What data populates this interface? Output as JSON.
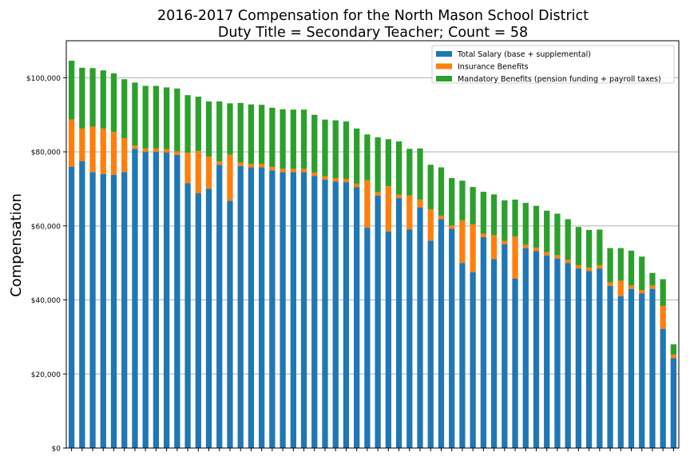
{
  "chart_data": {
    "type": "bar",
    "stacked": true,
    "title": "2016-2017 Compensation for the North Mason School District",
    "subtitle": "Duty Title = Secondary Teacher; Count = 58",
    "xlabel": "",
    "ylabel": "Compensation",
    "ylim": [
      0,
      110000
    ],
    "yticks": [
      0,
      20000,
      40000,
      60000,
      80000,
      100000
    ],
    "ytick_labels": [
      "$0",
      "$20,000",
      "$40,000",
      "$60,000",
      "$80,000",
      "$100,000"
    ],
    "grid": "horizontal",
    "legend_position": "top-right",
    "series": [
      {
        "name": "Total Salary (base + supplemental)",
        "color": "#1f77b4",
        "values": [
          76000,
          77500,
          74500,
          74000,
          73800,
          74500,
          80800,
          80000,
          80000,
          79800,
          79200,
          71500,
          68800,
          70000,
          76500,
          66800,
          76200,
          75800,
          75800,
          75000,
          74500,
          74500,
          74500,
          73500,
          72500,
          72000,
          71800,
          70500,
          59500,
          68200,
          58500,
          67500,
          59000,
          65000,
          56000,
          61800,
          59200,
          50000,
          47500,
          57000,
          51000,
          55000,
          45800,
          54000,
          53200,
          52000,
          51200,
          50000,
          48500,
          47800,
          48500,
          43800,
          41000,
          43000,
          41800,
          43000,
          32200,
          24300
        ]
      },
      {
        "name": "Insurance Benefits",
        "color": "#ff7f0e",
        "values": [
          12700,
          8800,
          12300,
          12300,
          11600,
          9200,
          900,
          900,
          900,
          900,
          900,
          8300,
          11400,
          8700,
          900,
          12400,
          900,
          900,
          900,
          900,
          900,
          900,
          900,
          900,
          900,
          900,
          900,
          900,
          12800,
          900,
          12200,
          900,
          9200,
          2100,
          8500,
          900,
          900,
          11500,
          12900,
          900,
          6500,
          900,
          11300,
          900,
          900,
          900,
          900,
          900,
          900,
          900,
          900,
          900,
          4200,
          900,
          900,
          900,
          6200,
          900
        ]
      },
      {
        "name": "Mandatory Benefits (pension funding + payroll taxes)",
        "color": "#2ca02c",
        "values": [
          15900,
          16400,
          15800,
          15700,
          15800,
          15900,
          17000,
          16900,
          16900,
          16700,
          17000,
          15500,
          14700,
          14900,
          16200,
          13900,
          16100,
          16100,
          16000,
          16000,
          16100,
          16000,
          16000,
          15600,
          15300,
          15600,
          15500,
          14900,
          12400,
          14800,
          12700,
          14400,
          12600,
          13800,
          12000,
          13100,
          12800,
          10700,
          10100,
          11300,
          11000,
          11000,
          10000,
          11300,
          11300,
          11200,
          11200,
          10900,
          10300,
          10200,
          9600,
          9300,
          8800,
          9400,
          9000,
          3400,
          7200,
          2800
        ]
      }
    ]
  }
}
